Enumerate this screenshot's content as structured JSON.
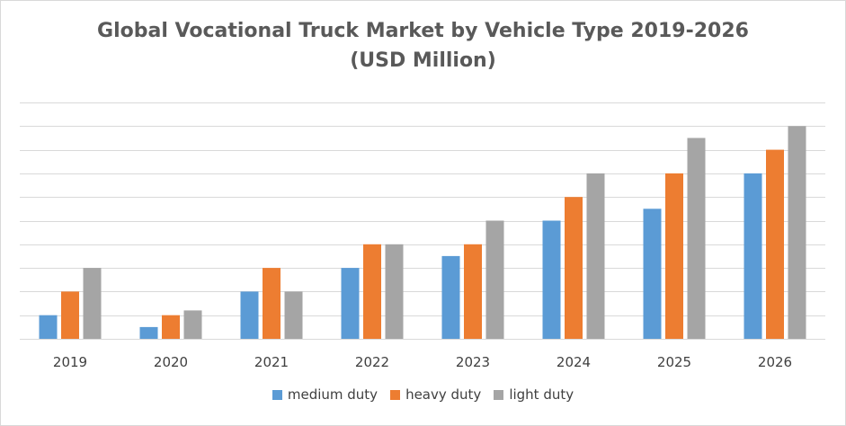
{
  "chart_data": {
    "type": "bar",
    "title": "Global Vocational Truck Market by Vehicle Type 2019-2026",
    "subtitle": "(USD Million)",
    "categories": [
      "2019",
      "2020",
      "2021",
      "2022",
      "2023",
      "2024",
      "2025",
      "2026"
    ],
    "series": [
      {
        "name": "medium duty",
        "color": "#5B9BD5",
        "values": [
          1,
          0.5,
          2,
          3,
          3.5,
          5,
          5.5,
          7
        ]
      },
      {
        "name": "heavy duty",
        "color": "#ED7D31",
        "values": [
          2,
          1,
          3,
          4,
          4,
          6,
          7,
          8
        ]
      },
      {
        "name": "light duty",
        "color": "#A5A5A5",
        "values": [
          3,
          1.2,
          2,
          4,
          5,
          7,
          8.5,
          9
        ]
      }
    ],
    "ylim": [
      0,
      10
    ],
    "grid": true,
    "legend": "bottom",
    "xlabel": "",
    "ylabel": ""
  }
}
